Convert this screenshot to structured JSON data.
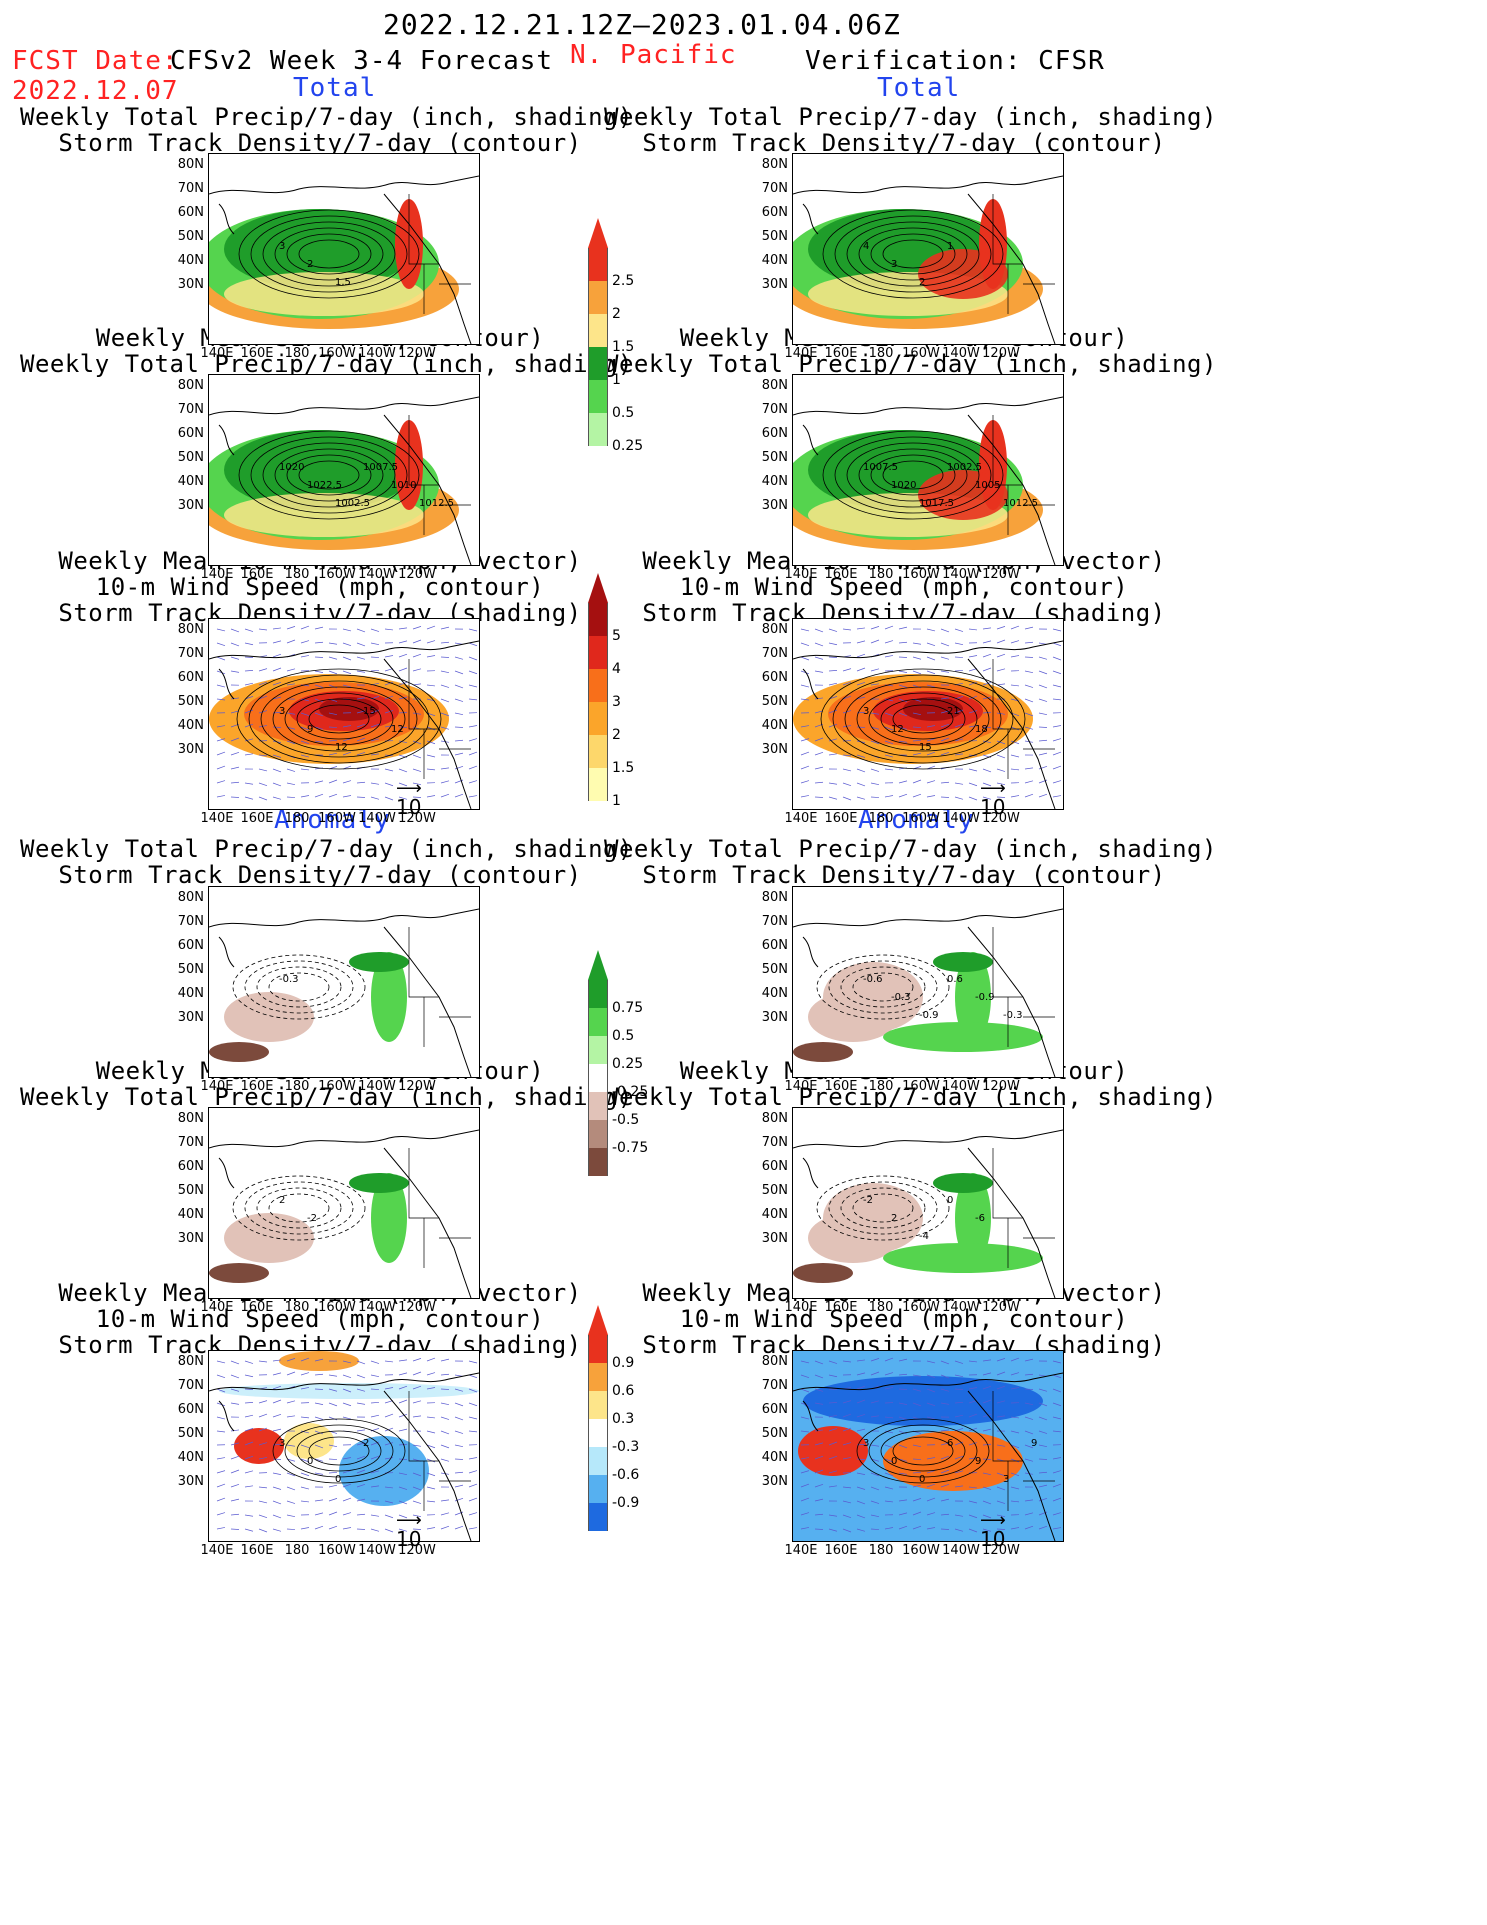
{
  "header": {
    "period": "2022.12.21.12Z–2023.01.04.06Z",
    "fcst_date_label": "FCST Date:",
    "fcst_date_value": "2022.12.07",
    "model_title": "CFSv2 Week 3-4 Forecast",
    "region": "N. Pacific",
    "verification": "Verification: CFSR"
  },
  "section_labels": {
    "total": "Total",
    "anomaly": "Anomaly"
  },
  "panel_titles": {
    "precip_storm": [
      "Weekly Total Precip/7-day (inch, shading)",
      "Storm Track Density/7-day (contour)"
    ],
    "slp_precip": [
      "Weekly Mean SLP (hPa, contour)",
      "Weekly Total Precip/7-day (inch, shading)"
    ],
    "wind_storm": [
      "Weekly Mean 10-m Wind (mph, vector)",
      "10-m Wind Speed (mph, contour)",
      "Storm Track Density/7-day (shading)"
    ]
  },
  "axes": {
    "lat_ticks": [
      "80N",
      "70N",
      "60N",
      "50N",
      "40N",
      "30N"
    ],
    "lon_ticks": [
      "140E",
      "160E",
      "180",
      "160W",
      "140W",
      "120W"
    ]
  },
  "vector_ref": "10",
  "colorbars": {
    "precip_total": {
      "labels": [
        "2.5",
        "2",
        "1.5",
        "1",
        "0.5",
        "0.25"
      ],
      "colors": [
        "#e8321e",
        "#f7a23b",
        "#fde58a",
        "#1f9d2a",
        "#55d44e",
        "#b4f4a4"
      ]
    },
    "storm_total": {
      "labels": [
        "5",
        "4",
        "3",
        "2",
        "1.5",
        "1"
      ],
      "colors": [
        "#a51010",
        "#e0281c",
        "#f86f1a",
        "#fba52a",
        "#fdd76b",
        "#fffcb0"
      ]
    },
    "precip_anom": {
      "labels": [
        "0.75",
        "0.5",
        "0.25",
        "-0.25",
        "-0.5",
        "-0.75"
      ],
      "colors": [
        "#1f9d2a",
        "#55d44e",
        "#b4f4a4",
        "#ffffff",
        "#e1c2b8",
        "#b48b7c",
        "#7c4a3c"
      ]
    },
    "storm_anom": {
      "labels": [
        "0.9",
        "0.6",
        "0.3",
        "-0.3",
        "-0.6",
        "-0.9"
      ],
      "colors": [
        "#e8321e",
        "#f7a23b",
        "#fde58a",
        "#ffffff",
        "#b6e8fa",
        "#56b0f0",
        "#1e6ae0"
      ]
    }
  },
  "contour_labels": {
    "fc_precip_total": [
      "3",
      "2",
      "1.5"
    ],
    "obs_precip_total": [
      "4",
      "3",
      "2",
      "1"
    ],
    "fc_slp_total": [
      "1020",
      "1022.5",
      "1002.5",
      "1007.5",
      "1010",
      "1012.5"
    ],
    "obs_slp_total": [
      "1007.5",
      "1020",
      "1017.5",
      "1002.5",
      "1005",
      "1012.5"
    ],
    "fc_wind_total": [
      "3",
      "9",
      "12",
      "15",
      "12"
    ],
    "obs_wind_total": [
      "3",
      "12",
      "15",
      "21",
      "18"
    ],
    "fc_precip_anom": [
      "-0.3"
    ],
    "obs_precip_anom": [
      "-0.6",
      "-0.3",
      "-0.9",
      "0.6",
      "-0.9",
      "-0.3"
    ],
    "fc_slp_anom": [
      "2",
      "-2"
    ],
    "obs_slp_anom": [
      "-2",
      "2",
      "-4",
      "0",
      "-6"
    ],
    "fc_wind_anom": [
      "3",
      "0",
      "0",
      "2"
    ],
    "obs_wind_anom": [
      "3",
      "0",
      "0",
      "6",
      "9",
      "3",
      "9"
    ]
  }
}
